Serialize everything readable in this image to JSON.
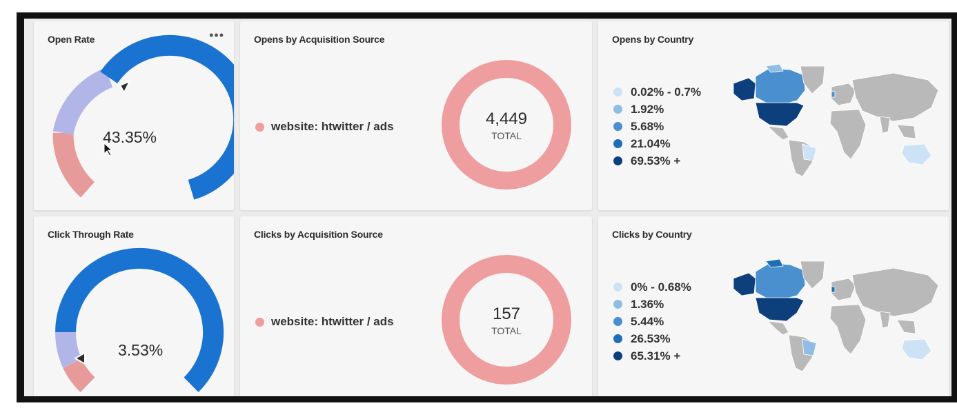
{
  "cards": {
    "open_rate": {
      "title": "Open Rate",
      "value": "43.35%",
      "rate": 0.4335,
      "menu_icon": "more-horizontal-icon"
    },
    "click_rate": {
      "title": "Click Through Rate",
      "value": "3.53%",
      "rate": 0.0353
    },
    "opens_source": {
      "title": "Opens by Acquisition Source",
      "legend": "website: htwitter / ads",
      "total": "4,449",
      "total_label": "TOTAL"
    },
    "clicks_source": {
      "title": "Clicks by Acquisition Source",
      "legend": "website: htwitter / ads",
      "total": "157",
      "total_label": "TOTAL"
    },
    "opens_country": {
      "title": "Opens by Country",
      "legend": [
        {
          "label": "0.02% - 0.7%",
          "color": "#cde3f5"
        },
        {
          "label": "1.92%",
          "color": "#8fbde3"
        },
        {
          "label": "5.68%",
          "color": "#4a8fce"
        },
        {
          "label": "21.04%",
          "color": "#1f6eb8"
        },
        {
          "label": "69.53% +",
          "color": "#0d3f7d"
        }
      ]
    },
    "clicks_country": {
      "title": "Clicks by Country",
      "legend": [
        {
          "label": "0% - 0.68%",
          "color": "#cde3f5"
        },
        {
          "label": "1.36%",
          "color": "#8fbde3"
        },
        {
          "label": "5.44%",
          "color": "#4a8fce"
        },
        {
          "label": "26.53%",
          "color": "#1f6eb8"
        },
        {
          "label": "65.31% +",
          "color": "#0d3f7d"
        }
      ]
    }
  },
  "colors": {
    "gauge_blue": "#1a73d1",
    "gauge_lavender": "#b2b5e8",
    "gauge_pink": "#e79a9a",
    "donut_pink": "#ee9e9e",
    "map_gray": "#b9b9b9"
  }
}
